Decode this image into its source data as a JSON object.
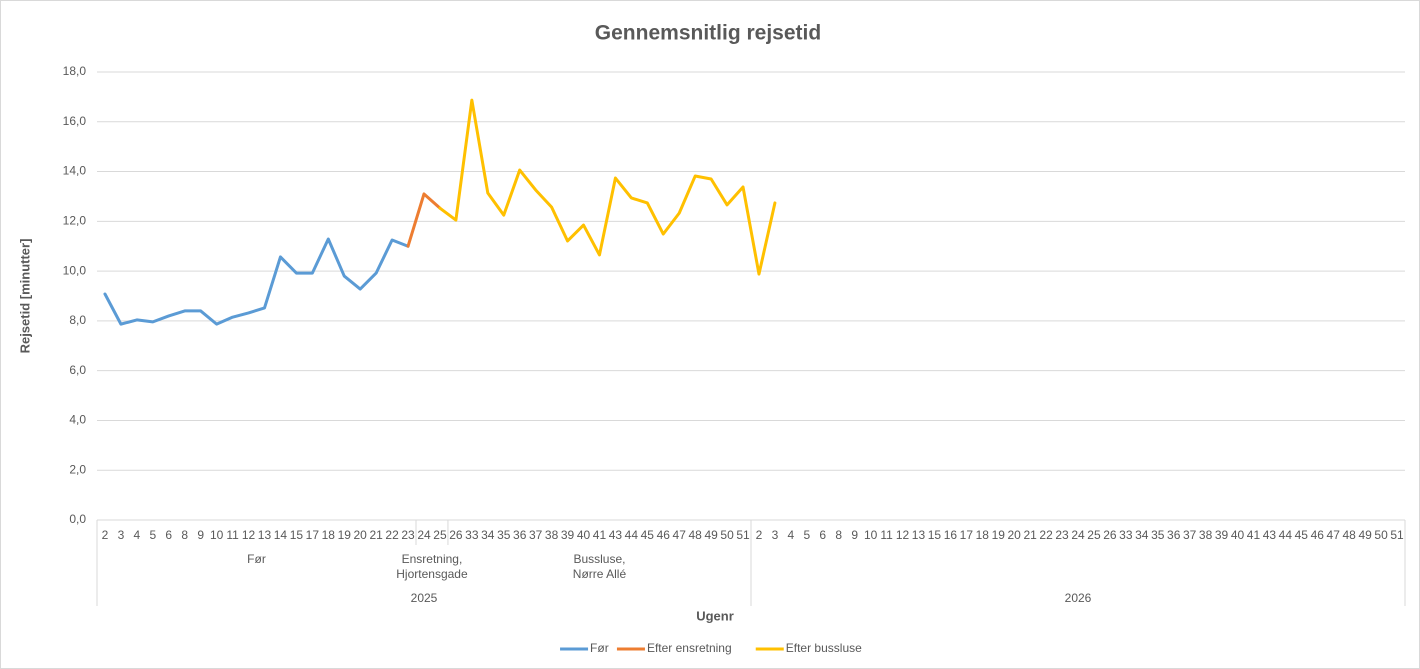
{
  "chart_data": {
    "type": "line",
    "title": "Gennemsnitlig rejsetid",
    "y_label": "Rejsetid [minutter]",
    "x_label": "Ugenr",
    "categories": [
      "2",
      "3",
      "4",
      "5",
      "6",
      "8",
      "9",
      "10",
      "11",
      "12",
      "13",
      "14",
      "15",
      "17",
      "18",
      "19",
      "20",
      "21",
      "22",
      "23",
      "24",
      "25",
      "26",
      "33",
      "34",
      "35",
      "36",
      "37",
      "38",
      "39",
      "40",
      "41",
      "43",
      "44",
      "45",
      "46",
      "47",
      "48",
      "49",
      "50",
      "51",
      "2",
      "3",
      "4",
      "5",
      "6",
      "8",
      "9",
      "10",
      "11",
      "12",
      "13",
      "15",
      "16",
      "17",
      "18",
      "19",
      "20",
      "21",
      "22",
      "23",
      "24",
      "25",
      "26",
      "33",
      "34",
      "35",
      "36",
      "37",
      "38",
      "39",
      "40",
      "41",
      "43",
      "44",
      "45",
      "46",
      "47",
      "48",
      "49",
      "50",
      "51"
    ],
    "groups": [
      {
        "label": "Før",
        "count": 20
      },
      {
        "label": "Ensretning, Hjortensgade",
        "count": 2
      },
      {
        "label": "Bussluse, Nørre Allé",
        "count": 19
      }
    ],
    "years": [
      {
        "label": "2025",
        "count": 41
      },
      {
        "label": "2026",
        "count": 41
      }
    ],
    "series": [
      {
        "name": "Før",
        "color": "#5b9bd5",
        "values": [
          9.08,
          7.87,
          8.04,
          7.96,
          8.2,
          8.4,
          8.4,
          7.87,
          8.15,
          8.32,
          8.52,
          10.57,
          9.92,
          9.92,
          11.29,
          9.8,
          9.28,
          9.92,
          11.25,
          11.0,
          null,
          null,
          null,
          null,
          null,
          null,
          null,
          null,
          null,
          null,
          null,
          null,
          null,
          null,
          null,
          null,
          null,
          null,
          null,
          null,
          null,
          null,
          null,
          null,
          null,
          null,
          null,
          null,
          null,
          null,
          null,
          null,
          null,
          null,
          null,
          null,
          null,
          null,
          null,
          null,
          null,
          null,
          null,
          null,
          null,
          null,
          null,
          null,
          null,
          null,
          null,
          null,
          null,
          null,
          null,
          null,
          null,
          null,
          null,
          null,
          null,
          null
        ]
      },
      {
        "name": "Efter ensretning",
        "color": "#ed7d31",
        "values": [
          null,
          null,
          null,
          null,
          null,
          null,
          null,
          null,
          null,
          null,
          null,
          null,
          null,
          null,
          null,
          null,
          null,
          null,
          null,
          11.0,
          13.1,
          12.53,
          null,
          null,
          null,
          null,
          null,
          null,
          null,
          null,
          null,
          null,
          null,
          null,
          null,
          null,
          null,
          null,
          null,
          null,
          null,
          null,
          null,
          null,
          null,
          null,
          null,
          null,
          null,
          null,
          null,
          null,
          null,
          null,
          null,
          null,
          null,
          null,
          null,
          null,
          null,
          null,
          null,
          null,
          null,
          null,
          null,
          null,
          null,
          null,
          null,
          null,
          null,
          null,
          null,
          null,
          null,
          null,
          null,
          null,
          null,
          null
        ]
      },
      {
        "name": "Efter bussluse",
        "color": "#ffc000",
        "values": [
          null,
          null,
          null,
          null,
          null,
          null,
          null,
          null,
          null,
          null,
          null,
          null,
          null,
          null,
          null,
          null,
          null,
          null,
          null,
          null,
          null,
          12.53,
          12.05,
          16.87,
          13.14,
          12.25,
          14.06,
          13.26,
          12.57,
          11.21,
          11.85,
          10.65,
          13.74,
          12.94,
          12.74,
          11.49,
          12.33,
          13.82,
          13.7,
          12.66,
          13.38,
          9.88,
          12.74,
          null,
          null,
          null,
          null,
          null,
          null,
          null,
          null,
          null,
          null,
          null,
          null,
          null,
          null,
          null,
          null,
          null,
          null,
          null,
          null,
          null,
          null,
          null,
          null,
          null,
          null,
          null,
          null,
          null,
          null,
          null,
          null,
          null,
          null,
          null,
          null,
          null,
          null,
          null
        ]
      }
    ],
    "ylim": [
      0,
      18
    ],
    "yticks": [
      {
        "value": 0,
        "label": "0,0"
      },
      {
        "value": 2,
        "label": "2,0"
      },
      {
        "value": 4,
        "label": "4,0"
      },
      {
        "value": 6,
        "label": "6,0"
      },
      {
        "value": 8,
        "label": "8,0"
      },
      {
        "value": 10,
        "label": "10,0"
      },
      {
        "value": 12,
        "label": "12,0"
      },
      {
        "value": 14,
        "label": "14,0"
      },
      {
        "value": 16,
        "label": "16,0"
      },
      {
        "value": 18,
        "label": "18,0"
      }
    ],
    "grid": true,
    "legend": "bottom"
  }
}
